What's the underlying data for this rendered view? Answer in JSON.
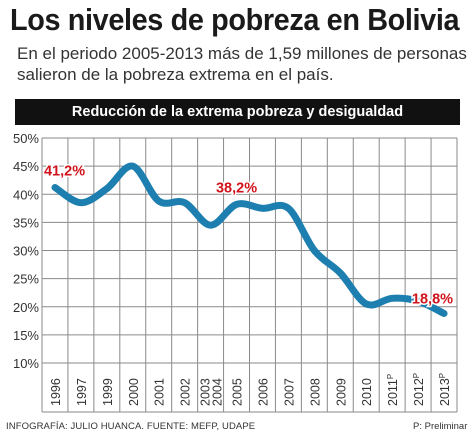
{
  "header": {
    "title": "Los niveles de pobreza en Bolivia",
    "subtitle": "En el periodo 2005-2013 más de 1,59 millones de personas salieron de la pobreza extrema en el país."
  },
  "colors": {
    "line": "#1d7fb0",
    "annotation": "#d0131b",
    "grid": "#8a8a8a",
    "banner": "#111111"
  },
  "chart_data": {
    "type": "line",
    "title": "Reducción de la extrema pobreza y desigualdad",
    "categories": [
      "1996",
      "1997",
      "1999",
      "2000",
      "2001",
      "2002",
      "2003\n2004",
      "2005",
      "2006",
      "2007",
      "2008",
      "2009",
      "2010",
      "2011P",
      "2012P",
      "2013P"
    ],
    "x_labels": [
      {
        "text": "1996",
        "sup": ""
      },
      {
        "text": "1997",
        "sup": ""
      },
      {
        "text": "1999",
        "sup": ""
      },
      {
        "text": "2000",
        "sup": ""
      },
      {
        "text": "2001",
        "sup": ""
      },
      {
        "text": "2002",
        "sup": ""
      },
      {
        "text": "2003",
        "text2": "2004",
        "sup": ""
      },
      {
        "text": "2005",
        "sup": ""
      },
      {
        "text": "2006",
        "sup": ""
      },
      {
        "text": "2007",
        "sup": ""
      },
      {
        "text": "2008",
        "sup": ""
      },
      {
        "text": "2009",
        "sup": ""
      },
      {
        "text": "2010",
        "sup": ""
      },
      {
        "text": "2011",
        "sup": "P"
      },
      {
        "text": "2012",
        "sup": "P"
      },
      {
        "text": "2013",
        "sup": "P"
      }
    ],
    "values": [
      41.2,
      38.5,
      41.0,
      45.0,
      38.8,
      38.5,
      34.5,
      38.2,
      37.5,
      37.5,
      30.0,
      26.0,
      20.5,
      21.5,
      21.0,
      18.8
    ],
    "ylim": [
      10,
      50
    ],
    "yticks": [
      "10%",
      "15%",
      "20%",
      "25%",
      "30%",
      "35%",
      "40%",
      "45%",
      "50%"
    ],
    "annotations": [
      {
        "index": 0,
        "label": "41,2%"
      },
      {
        "index": 7,
        "label": "38,2%"
      },
      {
        "index": 15,
        "label": "18,8%"
      }
    ],
    "grid": true,
    "legend": "none"
  },
  "footer": {
    "source": "INFOGRAFÍA: JULIO HUANCA. FUENTE: MEFP, UDAPE",
    "note": "P: Preliminar"
  }
}
